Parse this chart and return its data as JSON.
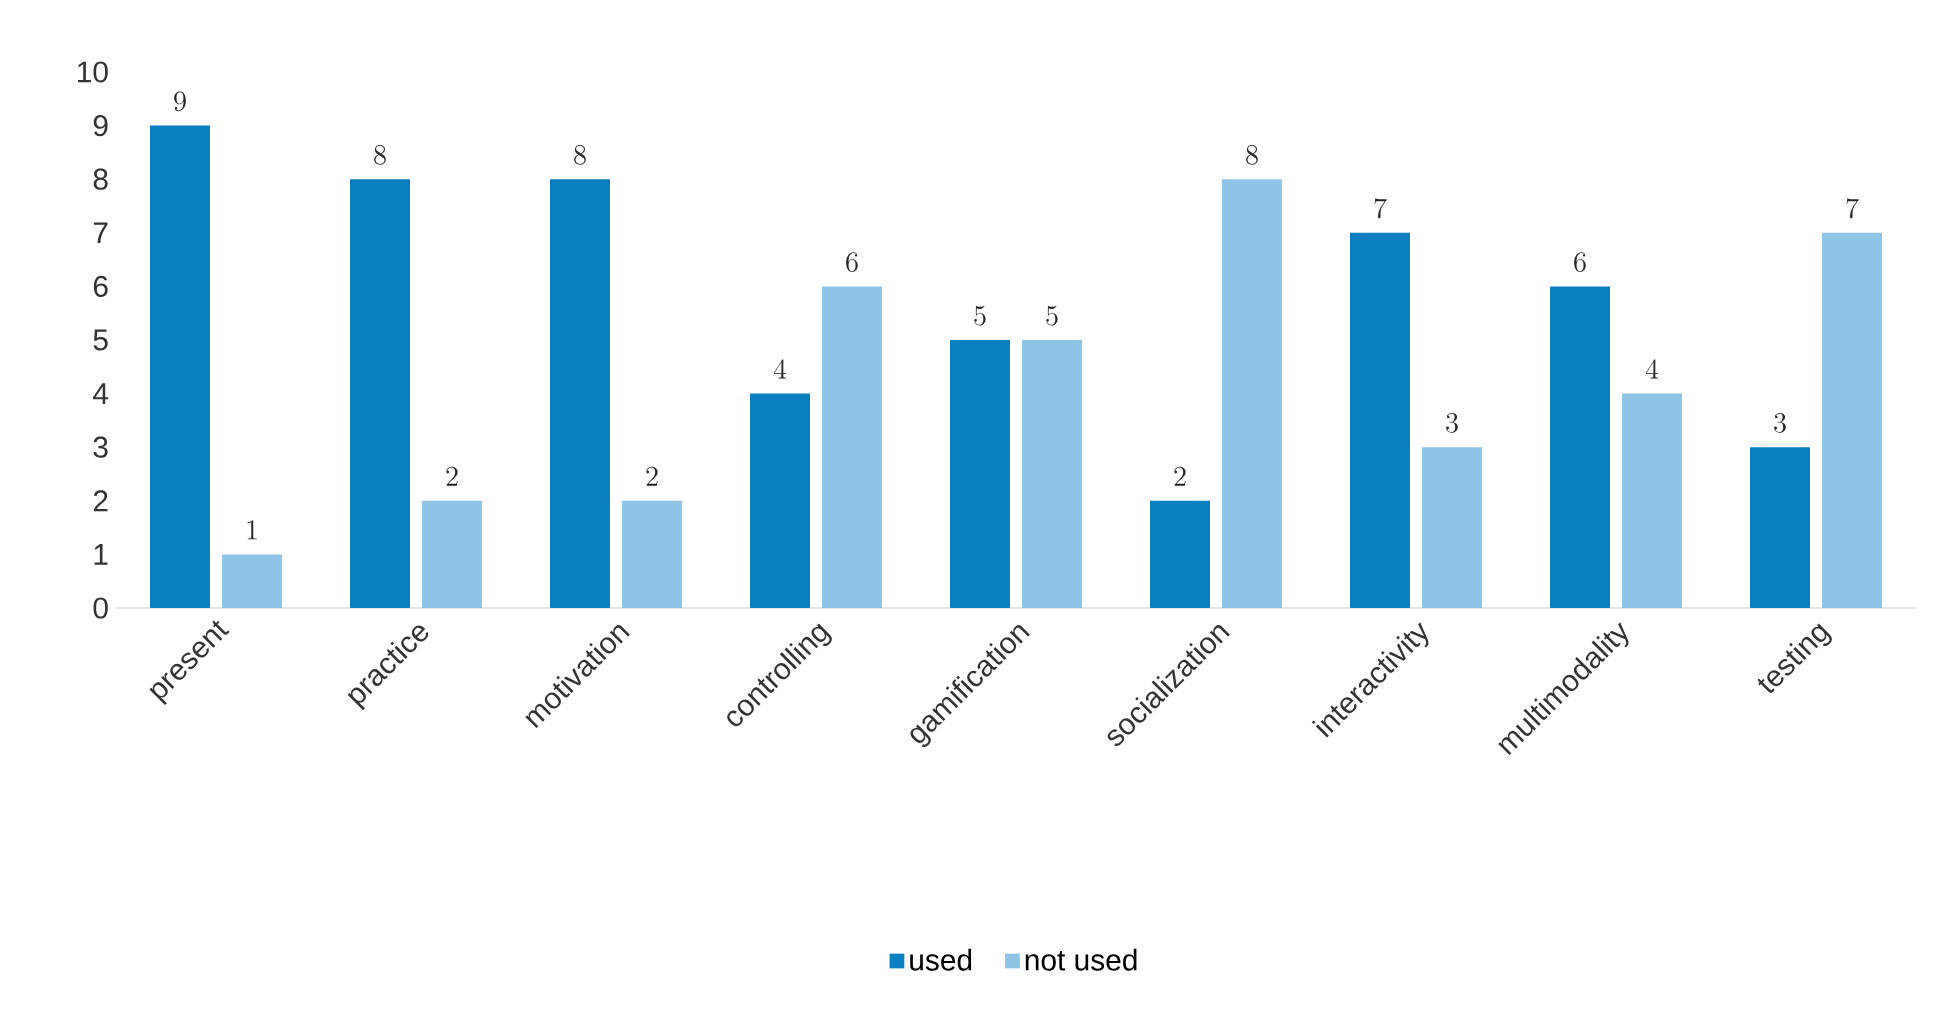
{
  "chart_data": {
    "type": "bar",
    "categories": [
      "present",
      "practice",
      "motivation",
      "controlling",
      "gamification",
      "socialization",
      "interactivity",
      "multimodality",
      "testing"
    ],
    "series": [
      {
        "name": "used",
        "color": "#0a80c0",
        "values": [
          9,
          8,
          8,
          4,
          5,
          2,
          7,
          6,
          3
        ]
      },
      {
        "name": "not used",
        "color": "#8ec4e6",
        "values": [
          1,
          2,
          2,
          6,
          5,
          8,
          3,
          4,
          7
        ]
      }
    ],
    "ylim": [
      0,
      10
    ],
    "yticks": [
      0,
      1,
      2,
      3,
      4,
      5,
      6,
      7,
      8,
      9,
      10
    ],
    "grid": false,
    "legend": "bottom",
    "data_labels": true
  }
}
